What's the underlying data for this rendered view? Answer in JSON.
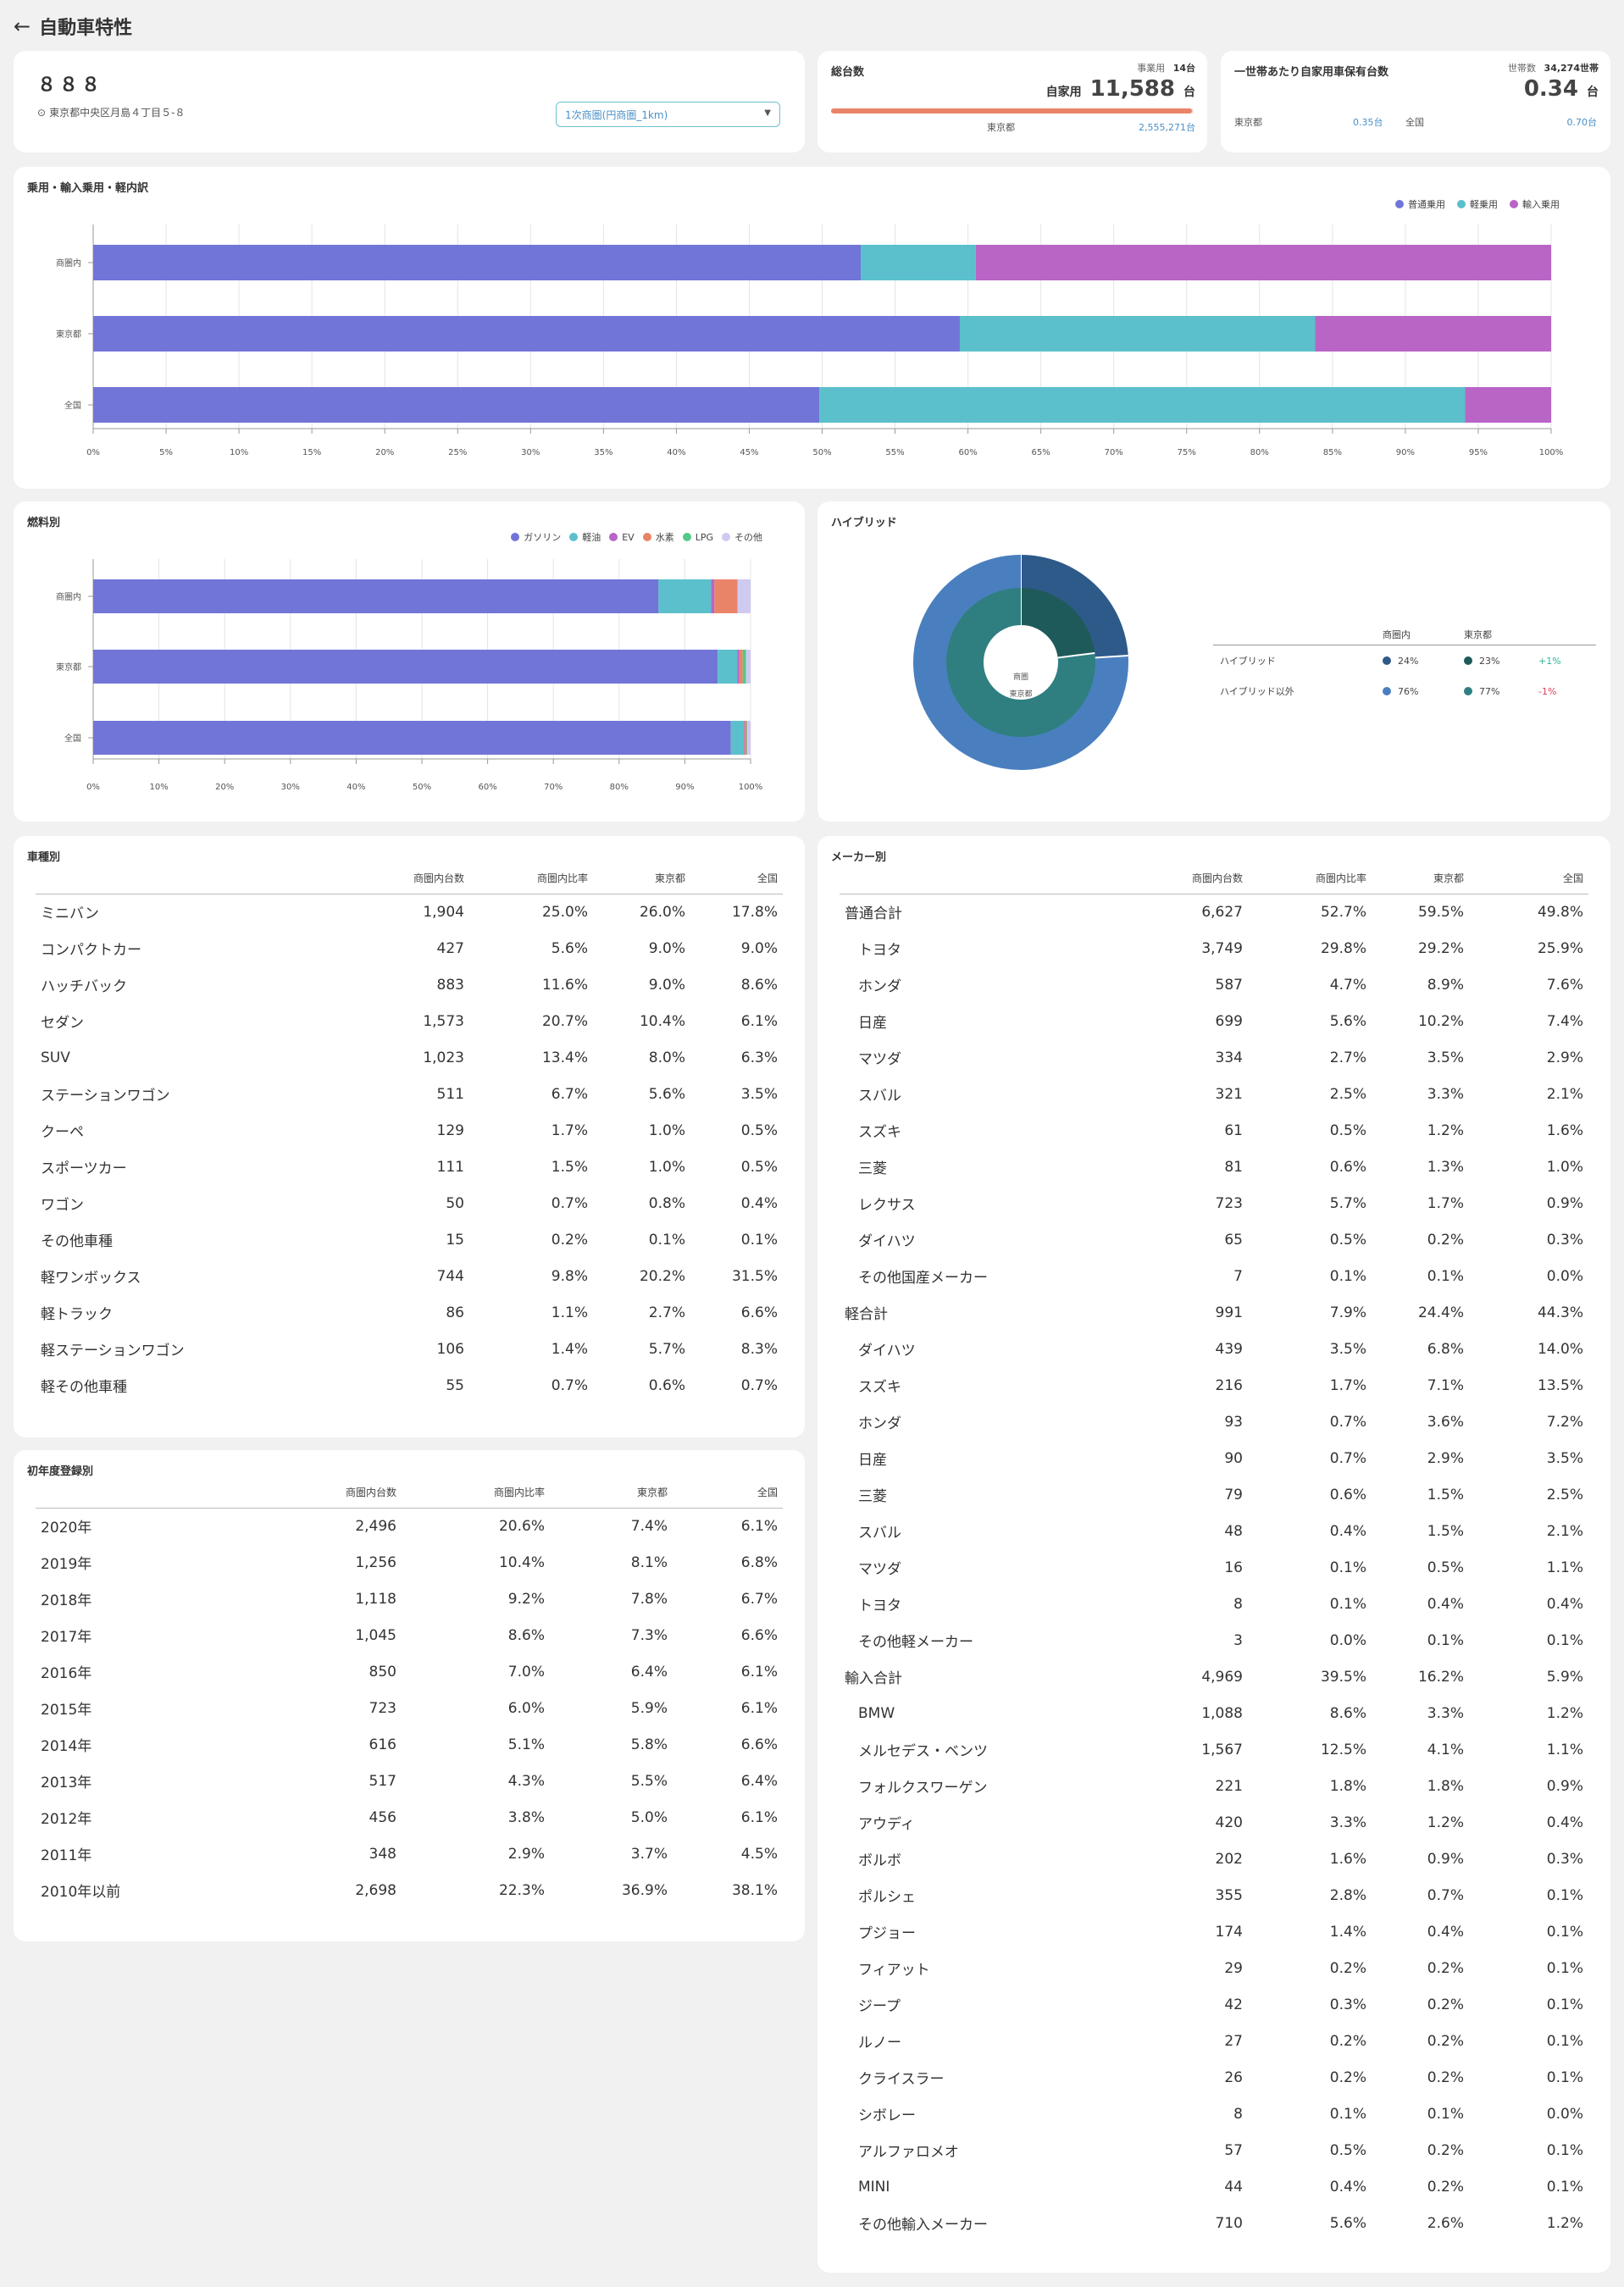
{
  "header": {
    "back_icon": "←",
    "title": "自動車特性"
  },
  "store": {
    "name": "８８８",
    "pin_icon": "⊙",
    "address": "東京都中央区月島４丁目５-８",
    "area_select": "1次商圏(円商圏_1km)",
    "caret": "▼"
  },
  "total": {
    "title": "総台数",
    "business_label": "事業用",
    "business_value": "14台",
    "private_label": "自家用",
    "private_value": "11,588",
    "unit": "台",
    "pref_label": "東京都",
    "pref_value": "2,555,271台",
    "bar_fill": 0.995
  },
  "household": {
    "title": "一世帯あたり自家用車保有台数",
    "hh_label": "世帯数",
    "hh_value": "34,274世帯",
    "value": "0.34",
    "unit": "台",
    "pref_label": "東京都",
    "pref_value": "0.35台",
    "nat_label": "全国",
    "nat_value": "0.70台"
  },
  "colors": {
    "purple": "#7175d8",
    "teal": "#5bc0cc",
    "magenta": "#b865c6",
    "orange": "#ea8469",
    "green": "#54c98a",
    "lavender": "#cfcaf0",
    "pos": "#2fb39a",
    "neg": "#d9405a",
    "blue": "#4a90c8",
    "donut_hb_in": "#2e5a8a",
    "donut_nhb_in": "#4a7fbf",
    "donut_hb_pref": "#1f5a5a",
    "donut_nhb_pref": "#2f7f80"
  },
  "breakdown": {
    "title": "乗用・輸入乗用・軽内訳",
    "chart_data": {
      "type": "bar",
      "stacked": true,
      "orientation": "horizontal",
      "categories": [
        "商圏内",
        "東京都",
        "全国"
      ],
      "series": [
        {
          "name": "普通乗用",
          "color": "#7175d8",
          "values": [
            52.7,
            59.5,
            49.8
          ]
        },
        {
          "name": "軽乗用",
          "color": "#5bc0cc",
          "values": [
            7.9,
            24.4,
            44.3
          ]
        },
        {
          "name": "輸入乗用",
          "color": "#b865c6",
          "values": [
            39.5,
            16.2,
            5.9
          ]
        }
      ],
      "xlim": [
        0,
        100
      ],
      "ticks": [
        "0%",
        "5%",
        "10%",
        "15%",
        "20%",
        "25%",
        "30%",
        "35%",
        "40%",
        "45%",
        "50%",
        "55%",
        "60%",
        "65%",
        "70%",
        "75%",
        "80%",
        "85%",
        "90%",
        "95%",
        "100%"
      ]
    }
  },
  "fuel": {
    "title": "燃料別",
    "chart_data": {
      "type": "bar",
      "stacked": true,
      "orientation": "horizontal",
      "categories": [
        "商圏内",
        "東京都",
        "全国"
      ],
      "series": [
        {
          "name": "ガソリン",
          "color": "#7175d8",
          "values": [
            86,
            95,
            97
          ]
        },
        {
          "name": "軽油",
          "color": "#5bc0cc",
          "values": [
            8,
            3,
            2
          ]
        },
        {
          "name": "EV",
          "color": "#b865c6",
          "values": [
            0.5,
            0.3,
            0.1
          ]
        },
        {
          "name": "水素",
          "color": "#ea8469",
          "values": [
            3.5,
            0.5,
            0.3
          ]
        },
        {
          "name": "LPG",
          "color": "#54c98a",
          "values": [
            0,
            0.5,
            0.1
          ]
        },
        {
          "name": "その他",
          "color": "#cfcaf0",
          "values": [
            2,
            0.7,
            0.5
          ]
        }
      ],
      "xlim": [
        0,
        100
      ],
      "ticks": [
        "0%",
        "10%",
        "20%",
        "30%",
        "40%",
        "50%",
        "60%",
        "70%",
        "80%",
        "90%",
        "100%"
      ]
    }
  },
  "hybrid": {
    "title": "ハイブリッド",
    "inner_label": "商圏",
    "inner_label2": "東京都",
    "col_area": "商圏内",
    "col_pref": "東京都",
    "rows": [
      {
        "label": "ハイブリッド",
        "area": "24%",
        "pref": "23%",
        "diff": "+1%",
        "sign": "pos"
      },
      {
        "label": "ハイブリッド以外",
        "area": "76%",
        "pref": "77%",
        "diff": "-1%",
        "sign": "neg"
      }
    ],
    "chart_data": {
      "type": "pie",
      "rings": [
        {
          "name": "商圏内",
          "values": [
            24,
            76
          ],
          "labels": [
            "ハイブリッド",
            "ハイブリッド以外"
          ]
        },
        {
          "name": "東京都",
          "values": [
            23,
            77
          ],
          "labels": [
            "ハイブリッド",
            "ハイブリッド以外"
          ]
        }
      ]
    }
  },
  "type_table": {
    "title": "車種別",
    "headers": [
      "",
      "商圏内台数",
      "商圏内比率",
      "東京都",
      "全国"
    ],
    "rows": [
      {
        "label": "ミニバン",
        "count": "1,904",
        "ratio": "25.0%",
        "sign": "neg",
        "pref": "26.0%",
        "nat": "17.8%"
      },
      {
        "label": "コンパクトカー",
        "count": "427",
        "ratio": "5.6%",
        "sign": "neg",
        "pref": "9.0%",
        "nat": "9.0%"
      },
      {
        "label": "ハッチバック",
        "count": "883",
        "ratio": "11.6%",
        "sign": "pos",
        "pref": "9.0%",
        "nat": "8.6%"
      },
      {
        "label": "セダン",
        "count": "1,573",
        "ratio": "20.7%",
        "sign": "pos",
        "pref": "10.4%",
        "nat": "6.1%"
      },
      {
        "label": "SUV",
        "count": "1,023",
        "ratio": "13.4%",
        "sign": "pos",
        "pref": "8.0%",
        "nat": "6.3%"
      },
      {
        "label": "ステーションワゴン",
        "count": "511",
        "ratio": "6.7%",
        "sign": "pos",
        "pref": "5.6%",
        "nat": "3.5%"
      },
      {
        "label": "クーペ",
        "count": "129",
        "ratio": "1.7%",
        "sign": "pos",
        "pref": "1.0%",
        "nat": "0.5%"
      },
      {
        "label": "スポーツカー",
        "count": "111",
        "ratio": "1.5%",
        "sign": "pos",
        "pref": "1.0%",
        "nat": "0.5%"
      },
      {
        "label": "ワゴン",
        "count": "50",
        "ratio": "0.7%",
        "sign": "neg",
        "pref": "0.8%",
        "nat": "0.4%"
      },
      {
        "label": "その他車種",
        "count": "15",
        "ratio": "0.2%",
        "sign": "pos",
        "pref": "0.1%",
        "nat": "0.1%"
      },
      {
        "label": "軽ワンボックス",
        "count": "744",
        "ratio": "9.8%",
        "sign": "neg",
        "pref": "20.2%",
        "nat": "31.5%"
      },
      {
        "label": "軽トラック",
        "count": "86",
        "ratio": "1.1%",
        "sign": "neg",
        "pref": "2.7%",
        "nat": "6.6%"
      },
      {
        "label": "軽ステーションワゴン",
        "count": "106",
        "ratio": "1.4%",
        "sign": "neg",
        "pref": "5.7%",
        "nat": "8.3%"
      },
      {
        "label": "軽その他車種",
        "count": "55",
        "ratio": "0.7%",
        "sign": "pos",
        "pref": "0.6%",
        "nat": "0.7%"
      }
    ]
  },
  "year_table": {
    "title": "初年度登録別",
    "headers": [
      "",
      "商圏内台数",
      "商圏内比率",
      "東京都",
      "全国"
    ],
    "rows": [
      {
        "label": "2020年",
        "count": "2,496",
        "ratio": "20.6%",
        "sign": "pos",
        "pref": "7.4%",
        "nat": "6.1%"
      },
      {
        "label": "2019年",
        "count": "1,256",
        "ratio": "10.4%",
        "sign": "pos",
        "pref": "8.1%",
        "nat": "6.8%"
      },
      {
        "label": "2018年",
        "count": "1,118",
        "ratio": "9.2%",
        "sign": "pos",
        "pref": "7.8%",
        "nat": "6.7%"
      },
      {
        "label": "2017年",
        "count": "1,045",
        "ratio": "8.6%",
        "sign": "pos",
        "pref": "7.3%",
        "nat": "6.6%"
      },
      {
        "label": "2016年",
        "count": "850",
        "ratio": "7.0%",
        "sign": "pos",
        "pref": "6.4%",
        "nat": "6.1%"
      },
      {
        "label": "2015年",
        "count": "723",
        "ratio": "6.0%",
        "sign": "pos",
        "pref": "5.9%",
        "nat": "6.1%"
      },
      {
        "label": "2014年",
        "count": "616",
        "ratio": "5.1%",
        "sign": "neg",
        "pref": "5.8%",
        "nat": "6.6%"
      },
      {
        "label": "2013年",
        "count": "517",
        "ratio": "4.3%",
        "sign": "neg",
        "pref": "5.5%",
        "nat": "6.4%"
      },
      {
        "label": "2012年",
        "count": "456",
        "ratio": "3.8%",
        "sign": "neg",
        "pref": "5.0%",
        "nat": "6.1%"
      },
      {
        "label": "2011年",
        "count": "348",
        "ratio": "2.9%",
        "sign": "neg",
        "pref": "3.7%",
        "nat": "4.5%"
      },
      {
        "label": "2010年以前",
        "count": "2,698",
        "ratio": "22.3%",
        "sign": "neg",
        "pref": "36.9%",
        "nat": "38.1%"
      }
    ]
  },
  "maker_table": {
    "title": "メーカー別",
    "headers": [
      "",
      "商圏内台数",
      "商圏内比率",
      "東京都",
      "全国"
    ],
    "rows": [
      {
        "label": "普通合計",
        "group": true,
        "count": "6,627",
        "ratio": "52.7%",
        "sign": "neg",
        "pref": "59.5%",
        "nat": "49.8%"
      },
      {
        "label": "トヨタ",
        "count": "3,749",
        "ratio": "29.8%",
        "sign": "pos",
        "pref": "29.2%",
        "nat": "25.9%"
      },
      {
        "label": "ホンダ",
        "count": "587",
        "ratio": "4.7%",
        "sign": "neg",
        "pref": "8.9%",
        "nat": "7.6%"
      },
      {
        "label": "日産",
        "count": "699",
        "ratio": "5.6%",
        "sign": "neg",
        "pref": "10.2%",
        "nat": "7.4%"
      },
      {
        "label": "マツダ",
        "count": "334",
        "ratio": "2.7%",
        "sign": "neg",
        "pref": "3.5%",
        "nat": "2.9%"
      },
      {
        "label": "スバル",
        "count": "321",
        "ratio": "2.5%",
        "sign": "neg",
        "pref": "3.3%",
        "nat": "2.1%"
      },
      {
        "label": "スズキ",
        "count": "61",
        "ratio": "0.5%",
        "sign": "neg",
        "pref": "1.2%",
        "nat": "1.6%"
      },
      {
        "label": "三菱",
        "count": "81",
        "ratio": "0.6%",
        "sign": "neg",
        "pref": "1.3%",
        "nat": "1.0%"
      },
      {
        "label": "レクサス",
        "count": "723",
        "ratio": "5.7%",
        "sign": "pos",
        "pref": "1.7%",
        "nat": "0.9%"
      },
      {
        "label": "ダイハツ",
        "count": "65",
        "ratio": "0.5%",
        "sign": "pos",
        "pref": "0.2%",
        "nat": "0.3%"
      },
      {
        "label": "その他国産メーカー",
        "count": "7",
        "ratio": "0.1%",
        "sign": "neg",
        "pref": "0.1%",
        "nat": "0.0%"
      },
      {
        "label": "軽合計",
        "group": true,
        "count": "991",
        "ratio": "7.9%",
        "sign": "neg",
        "pref": "24.4%",
        "nat": "44.3%"
      },
      {
        "label": "ダイハツ",
        "count": "439",
        "ratio": "3.5%",
        "sign": "neg",
        "pref": "6.8%",
        "nat": "14.0%"
      },
      {
        "label": "スズキ",
        "count": "216",
        "ratio": "1.7%",
        "sign": "neg",
        "pref": "7.1%",
        "nat": "13.5%"
      },
      {
        "label": "ホンダ",
        "count": "93",
        "ratio": "0.7%",
        "sign": "neg",
        "pref": "3.6%",
        "nat": "7.2%"
      },
      {
        "label": "日産",
        "count": "90",
        "ratio": "0.7%",
        "sign": "neg",
        "pref": "2.9%",
        "nat": "3.5%"
      },
      {
        "label": "三菱",
        "count": "79",
        "ratio": "0.6%",
        "sign": "neg",
        "pref": "1.5%",
        "nat": "2.5%"
      },
      {
        "label": "スバル",
        "count": "48",
        "ratio": "0.4%",
        "sign": "neg",
        "pref": "1.5%",
        "nat": "2.1%"
      },
      {
        "label": "マツダ",
        "count": "16",
        "ratio": "0.1%",
        "sign": "neg",
        "pref": "0.5%",
        "nat": "1.1%"
      },
      {
        "label": "トヨタ",
        "count": "8",
        "ratio": "0.1%",
        "sign": "neg",
        "pref": "0.4%",
        "nat": "0.4%"
      },
      {
        "label": "その他軽メーカー",
        "count": "3",
        "ratio": "0.0%",
        "sign": "neg",
        "pref": "0.1%",
        "nat": "0.1%"
      },
      {
        "label": "輸入合計",
        "group": true,
        "count": "4,969",
        "ratio": "39.5%",
        "sign": "pos",
        "pref": "16.2%",
        "nat": "5.9%"
      },
      {
        "label": "BMW",
        "count": "1,088",
        "ratio": "8.6%",
        "sign": "pos",
        "pref": "3.3%",
        "nat": "1.2%"
      },
      {
        "label": "メルセデス・ベンツ",
        "count": "1,567",
        "ratio": "12.5%",
        "sign": "pos",
        "pref": "4.1%",
        "nat": "1.1%"
      },
      {
        "label": "フォルクスワーゲン",
        "count": "221",
        "ratio": "1.8%",
        "sign": "neg",
        "pref": "1.8%",
        "nat": "0.9%"
      },
      {
        "label": "アウディ",
        "count": "420",
        "ratio": "3.3%",
        "sign": "pos",
        "pref": "1.2%",
        "nat": "0.4%"
      },
      {
        "label": "ボルボ",
        "count": "202",
        "ratio": "1.6%",
        "sign": "pos",
        "pref": "0.9%",
        "nat": "0.3%"
      },
      {
        "label": "ポルシェ",
        "count": "355",
        "ratio": "2.8%",
        "sign": "pos",
        "pref": "0.7%",
        "nat": "0.1%"
      },
      {
        "label": "プジョー",
        "count": "174",
        "ratio": "1.4%",
        "sign": "pos",
        "pref": "0.4%",
        "nat": "0.1%"
      },
      {
        "label": "フィアット",
        "count": "29",
        "ratio": "0.2%",
        "sign": "pos",
        "pref": "0.2%",
        "nat": "0.1%"
      },
      {
        "label": "ジープ",
        "count": "42",
        "ratio": "0.3%",
        "sign": "pos",
        "pref": "0.2%",
        "nat": "0.1%"
      },
      {
        "label": "ルノー",
        "count": "27",
        "ratio": "0.2%",
        "sign": "pos",
        "pref": "0.2%",
        "nat": "0.1%"
      },
      {
        "label": "クライスラー",
        "count": "26",
        "ratio": "0.2%",
        "sign": "pos",
        "pref": "0.2%",
        "nat": "0.1%"
      },
      {
        "label": "シボレー",
        "count": "8",
        "ratio": "0.1%",
        "sign": "pos",
        "pref": "0.1%",
        "nat": "0.0%"
      },
      {
        "label": "アルファロメオ",
        "count": "57",
        "ratio": "0.5%",
        "sign": "pos",
        "pref": "0.2%",
        "nat": "0.1%"
      },
      {
        "label": "MINI",
        "count": "44",
        "ratio": "0.4%",
        "sign": "pos",
        "pref": "0.2%",
        "nat": "0.1%"
      },
      {
        "label": "その他輸入メーカー",
        "count": "710",
        "ratio": "5.6%",
        "sign": "pos",
        "pref": "2.6%",
        "nat": "1.2%"
      }
    ]
  }
}
